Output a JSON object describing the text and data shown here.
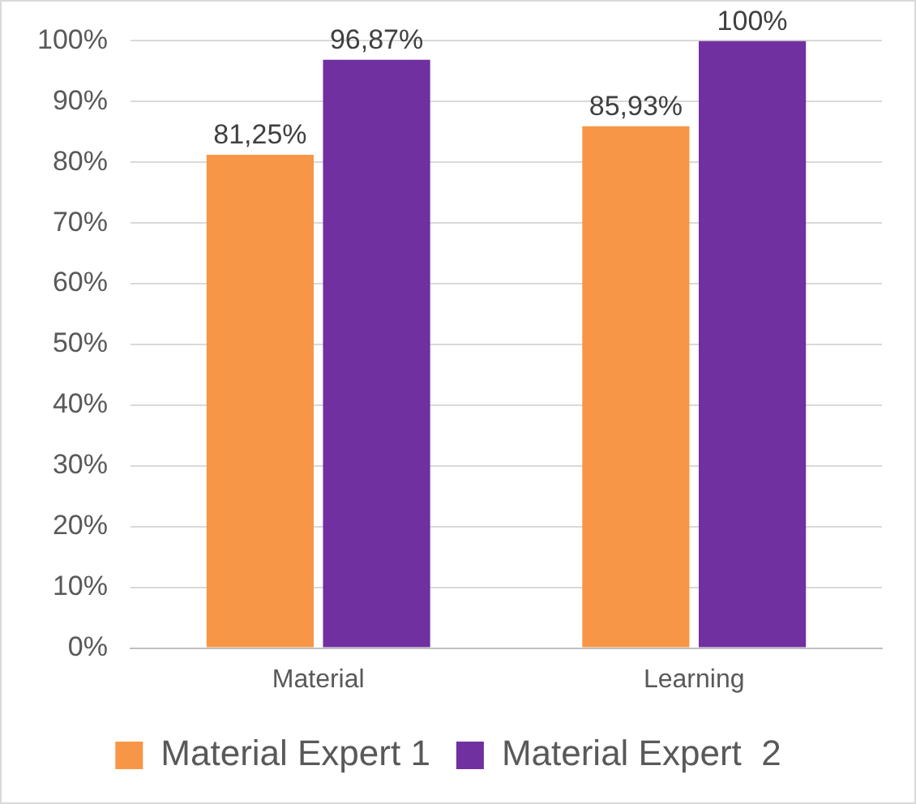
{
  "chart_data": {
    "type": "bar",
    "categories": [
      "Material",
      "Learning"
    ],
    "series": [
      {
        "name": "Material Expert 1",
        "color": "#f79646",
        "values": [
          81.25,
          85.93
        ],
        "value_labels": [
          "81,25%",
          "85,93%"
        ]
      },
      {
        "name": "Material Expert  2",
        "color": "#7030a0",
        "values": [
          96.87,
          100
        ],
        "value_labels": [
          "96,87%",
          "100%"
        ]
      }
    ],
    "ylim": [
      0,
      100
    ],
    "yticks": [
      {
        "value": 0,
        "label": "0%"
      },
      {
        "value": 10,
        "label": "10%"
      },
      {
        "value": 20,
        "label": "20%"
      },
      {
        "value": 30,
        "label": "30%"
      },
      {
        "value": 40,
        "label": "40%"
      },
      {
        "value": 50,
        "label": "50%"
      },
      {
        "value": 60,
        "label": "60%"
      },
      {
        "value": 70,
        "label": "70%"
      },
      {
        "value": 80,
        "label": "80%"
      },
      {
        "value": 90,
        "label": "90%"
      },
      {
        "value": 100,
        "label": "100%"
      }
    ],
    "grid": "y",
    "legend": "bottom"
  }
}
